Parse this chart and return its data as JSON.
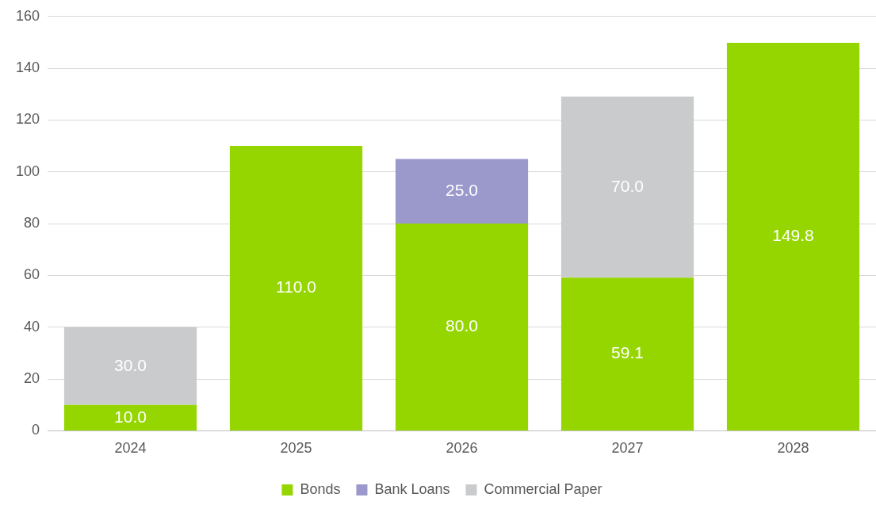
{
  "chart_data": {
    "type": "bar",
    "stacked": true,
    "categories": [
      "2024",
      "2025",
      "2026",
      "2027",
      "2028"
    ],
    "series": [
      {
        "name": "Bonds",
        "color": "#96d600",
        "values": [
          10.0,
          110.0,
          80.0,
          59.1,
          149.8
        ],
        "value_labels": [
          "10.0",
          "110.0",
          "80.0",
          "59.1",
          "149.8"
        ]
      },
      {
        "name": "Bank Loans",
        "color": "#9b98cc",
        "values": [
          null,
          null,
          25.0,
          null,
          null
        ],
        "value_labels": [
          null,
          null,
          "25.0",
          null,
          null
        ]
      },
      {
        "name": "Commercial Paper",
        "color": "#c9cbcd",
        "values": [
          30.0,
          null,
          null,
          70.0,
          null
        ],
        "value_labels": [
          "30.0",
          null,
          null,
          "70.0",
          null
        ]
      }
    ],
    "ylim": [
      0,
      160
    ],
    "yticks": [
      0,
      20,
      40,
      60,
      80,
      100,
      120,
      140,
      160
    ],
    "grid": "y",
    "legend": "bottom"
  }
}
